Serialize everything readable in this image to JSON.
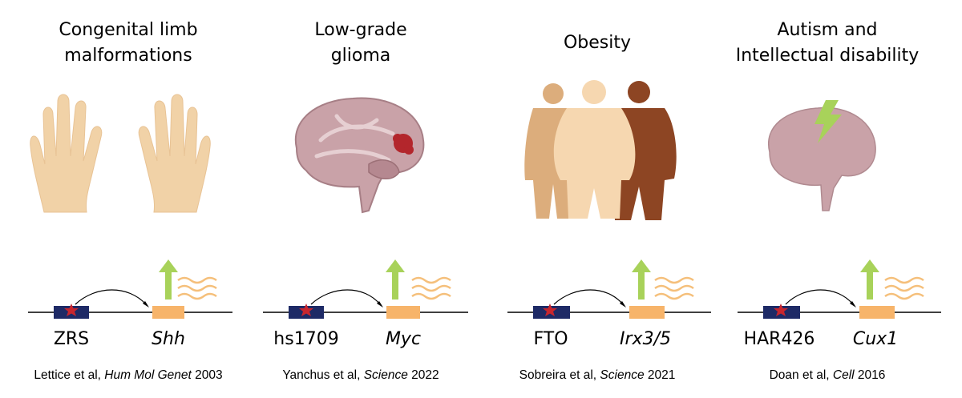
{
  "panels": [
    {
      "title_line1": "Congenital limb",
      "title_line2": "malformations",
      "enhancer": "ZRS",
      "gene": "Shh",
      "citation_authors": "Lettice et al, ",
      "citation_journal": "Hum Mol Genet",
      "citation_year": " 2003",
      "illustration": "hands-icon"
    },
    {
      "title_line1": "Low-grade",
      "title_line2": "glioma",
      "enhancer": "hs1709",
      "gene": "Myc",
      "citation_authors": "Yanchus et al, ",
      "citation_journal": "Science",
      "citation_year": " 2022",
      "illustration": "brain-tumor-icon"
    },
    {
      "title_line1": "Obesity",
      "title_line2": "",
      "enhancer": "FTO",
      "gene": "Irx3/5",
      "citation_authors": "Sobreira et al, ",
      "citation_journal": "Science",
      "citation_year": " 2021",
      "illustration": "body-silhouettes-icon"
    },
    {
      "title_line1": "Autism and",
      "title_line2": "Intellectual disability",
      "enhancer": "HAR426",
      "gene": "Cux1",
      "citation_authors": "Doan et al, ",
      "citation_journal": "Cell",
      "citation_year": " 2016",
      "illustration": "brain-lightning-icon"
    }
  ],
  "colors": {
    "enhancer_box": "#1e2a66",
    "variant_star": "#c8262e",
    "gene_box": "#f7b46a",
    "up_arrow": "#a8d25a",
    "transcript_wave": "#f5bf7a",
    "skin_light": "#f1d2a7",
    "brain": "#c9a2a8",
    "tumor": "#b3262c"
  }
}
